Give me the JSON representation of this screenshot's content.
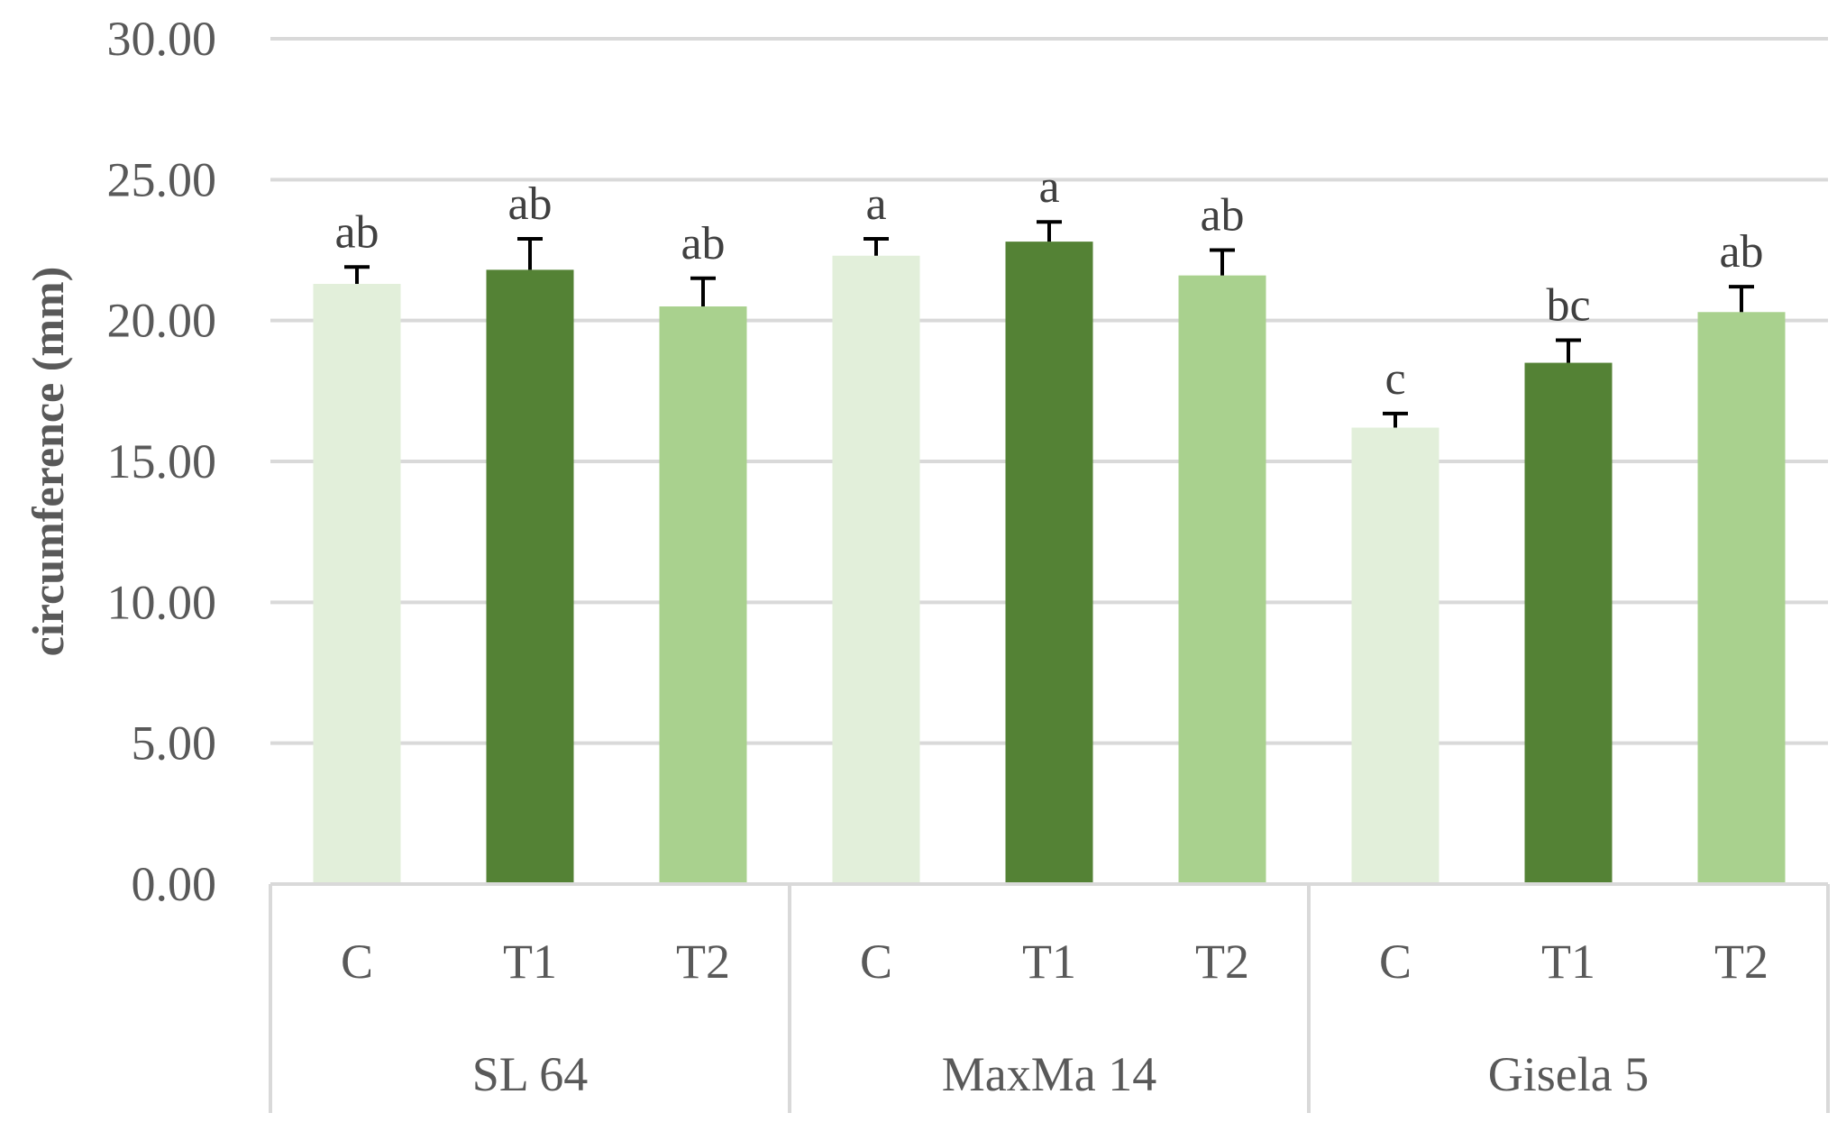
{
  "chart_data": {
    "type": "bar",
    "ylabel": "circumference (mm)",
    "xlabel": "",
    "title": "",
    "ylim": [
      0,
      30
    ],
    "yticks": [
      "0.00",
      "5.00",
      "10.00",
      "15.00",
      "20.00",
      "25.00",
      "30.00"
    ],
    "grid": true,
    "groups": [
      {
        "name": "SL 64",
        "bars": [
          {
            "label": "C",
            "value": 21.3,
            "error": 0.6,
            "sig": "ab",
            "color": "#e2efda"
          },
          {
            "label": "T1",
            "value": 21.8,
            "error": 1.1,
            "sig": "ab",
            "color": "#548235"
          },
          {
            "label": "T2",
            "value": 20.5,
            "error": 1.0,
            "sig": "ab",
            "color": "#a9d18e"
          }
        ]
      },
      {
        "name": "MaxMa 14",
        "bars": [
          {
            "label": "C",
            "value": 22.3,
            "error": 0.6,
            "sig": "a",
            "color": "#e2efda"
          },
          {
            "label": "T1",
            "value": 22.8,
            "error": 0.7,
            "sig": "a",
            "color": "#548235"
          },
          {
            "label": "T2",
            "value": 21.6,
            "error": 0.9,
            "sig": "ab",
            "color": "#a9d18e"
          }
        ]
      },
      {
        "name": "Gisela 5",
        "bars": [
          {
            "label": "C",
            "value": 16.2,
            "error": 0.5,
            "sig": "c",
            "color": "#e2efda"
          },
          {
            "label": "T1",
            "value": 18.5,
            "error": 0.8,
            "sig": "bc",
            "color": "#548235"
          },
          {
            "label": "T2",
            "value": 20.3,
            "error": 0.9,
            "sig": "ab",
            "color": "#a9d18e"
          }
        ]
      }
    ]
  }
}
